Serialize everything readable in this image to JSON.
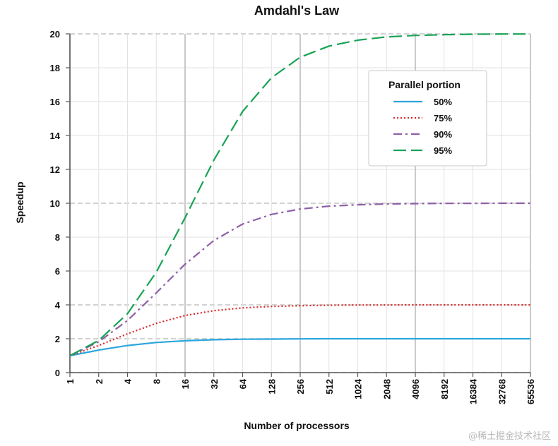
{
  "chart_data": {
    "type": "line",
    "title": "Amdahl's Law",
    "xlabel": "Number of processors",
    "ylabel": "Speedup",
    "x_scale": "log2",
    "x": [
      1,
      2,
      4,
      8,
      16,
      32,
      64,
      128,
      256,
      512,
      1024,
      2048,
      4096,
      8192,
      16384,
      32768,
      65536
    ],
    "x_tick_labels": [
      "1",
      "2",
      "4",
      "8",
      "16",
      "32",
      "64",
      "128",
      "256",
      "512",
      "1024",
      "2048",
      "4096",
      "8192",
      "16384",
      "32768",
      "65536"
    ],
    "y_ticks": [
      0,
      2,
      4,
      6,
      8,
      10,
      12,
      14,
      16,
      18,
      20
    ],
    "y_tick_labels": [
      "0",
      "2",
      "4",
      "6",
      "8",
      "10",
      "12",
      "14",
      "16",
      "18",
      "20"
    ],
    "ylim": [
      0,
      20
    ],
    "grid": true,
    "legend": {
      "title": "Parallel portion",
      "placement": "top-right"
    },
    "series": [
      {
        "name": "50%",
        "color": "#2aa6dd",
        "dash": "solid",
        "values": [
          1.0,
          1.33,
          1.6,
          1.78,
          1.88,
          1.94,
          1.97,
          1.98,
          1.99,
          2.0,
          2.0,
          2.0,
          2.0,
          2.0,
          2.0,
          2.0,
          2.0
        ]
      },
      {
        "name": "75%",
        "color": "#d62728",
        "dash": "dotted",
        "values": [
          1.0,
          1.6,
          2.29,
          2.91,
          3.37,
          3.66,
          3.82,
          3.91,
          3.95,
          3.98,
          3.99,
          3.99,
          4.0,
          4.0,
          4.0,
          4.0,
          4.0
        ]
      },
      {
        "name": "90%",
        "color": "#8e5fa6",
        "dash": "dashdot",
        "values": [
          1.0,
          1.82,
          3.08,
          4.71,
          6.4,
          7.8,
          8.77,
          9.34,
          9.66,
          9.83,
          9.91,
          9.96,
          9.98,
          9.99,
          9.99,
          10.0,
          10.0
        ]
      },
      {
        "name": "95%",
        "color": "#17a355",
        "dash": "longdash",
        "values": [
          1.0,
          1.9,
          3.48,
          5.93,
          9.14,
          12.55,
          15.42,
          17.41,
          18.62,
          19.28,
          19.63,
          19.82,
          19.91,
          19.95,
          19.98,
          19.99,
          19.99
        ]
      }
    ]
  }
}
